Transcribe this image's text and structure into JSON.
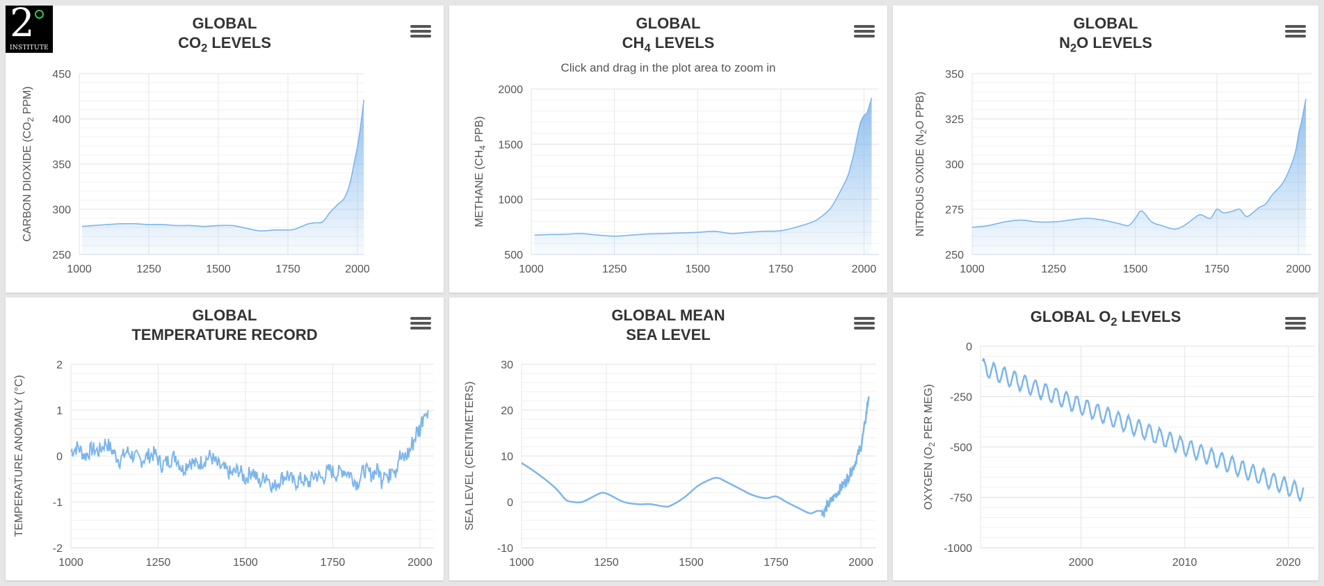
{
  "logo": {
    "text": "2",
    "caption": "INSTITUTE"
  },
  "menu_icon": "hamburger-menu-icon",
  "chart_data": [
    {
      "id": "co2",
      "type": "area",
      "title_line1": "GLOBAL",
      "title_line2": "CO",
      "title_sub": "2",
      "title_after": " LEVELS",
      "subtitle": "",
      "ylabel_pre": "CARBON DIOXIDE (CO",
      "ylabel_sub": "2",
      "ylabel_post": " PPM)",
      "xlim": [
        1000,
        2025
      ],
      "ylim": [
        250,
        450
      ],
      "xticks": [
        1000,
        1250,
        1500,
        1750,
        2000
      ],
      "yticks": [
        250,
        300,
        350,
        400,
        450
      ],
      "x": [
        1010,
        1050,
        1100,
        1150,
        1200,
        1250,
        1300,
        1350,
        1400,
        1450,
        1500,
        1550,
        1600,
        1650,
        1700,
        1750,
        1775,
        1800,
        1825,
        1850,
        1875,
        1900,
        1925,
        1950,
        1960,
        1970,
        1980,
        1990,
        2000,
        2010,
        2020,
        2023
      ],
      "y": [
        281,
        282,
        283,
        284,
        284,
        283,
        283,
        282,
        282,
        281,
        282,
        282,
        279,
        276,
        277,
        277,
        278,
        281,
        284,
        285,
        286,
        296,
        304,
        311,
        317,
        325,
        338,
        354,
        369,
        389,
        413,
        421
      ]
    },
    {
      "id": "ch4",
      "type": "area",
      "title_line1": "GLOBAL",
      "title_line2": "CH",
      "title_sub": "4",
      "title_after": " LEVELS",
      "subtitle": "Click and drag in the plot area to zoom in",
      "ylabel_pre": "METHANE (CH",
      "ylabel_sub": "4",
      "ylabel_post": " PPB)",
      "xlim": [
        1000,
        2045
      ],
      "ylim": [
        500,
        2000
      ],
      "xticks": [
        1000,
        1250,
        1500,
        1750,
        2000
      ],
      "yticks": [
        500,
        1000,
        1500,
        2000
      ],
      "x": [
        1010,
        1050,
        1100,
        1150,
        1200,
        1250,
        1300,
        1350,
        1400,
        1450,
        1500,
        1550,
        1600,
        1650,
        1700,
        1750,
        1800,
        1850,
        1875,
        1900,
        1925,
        1950,
        1960,
        1970,
        1980,
        1990,
        2000,
        2010,
        2023
      ],
      "y": [
        675,
        680,
        682,
        690,
        675,
        665,
        675,
        685,
        690,
        695,
        700,
        710,
        690,
        700,
        710,
        715,
        750,
        800,
        850,
        920,
        1050,
        1200,
        1300,
        1420,
        1570,
        1700,
        1760,
        1790,
        1920
      ]
    },
    {
      "id": "n2o",
      "type": "area",
      "title_line1": "GLOBAL",
      "title_line2": "N",
      "title_sub": "2",
      "title_after": "O LEVELS",
      "subtitle": "",
      "ylabel_pre": "NITROUS OXIDE (N",
      "ylabel_sub": "2",
      "ylabel_post": "O PPB)",
      "xlim": [
        1000,
        2040
      ],
      "ylim": [
        250,
        350
      ],
      "xticks": [
        1000,
        1250,
        1500,
        1750,
        2000
      ],
      "yticks": [
        250,
        275,
        300,
        325,
        350
      ],
      "x": [
        1000,
        1050,
        1100,
        1150,
        1200,
        1250,
        1300,
        1350,
        1400,
        1450,
        1480,
        1500,
        1520,
        1550,
        1580,
        1620,
        1650,
        1680,
        1700,
        1730,
        1750,
        1770,
        1800,
        1820,
        1840,
        1860,
        1880,
        1900,
        1920,
        1950,
        1970,
        1990,
        2000,
        2010,
        2023
      ],
      "y": [
        265,
        266,
        268,
        269,
        268,
        268,
        269,
        270,
        269,
        267,
        266,
        270,
        274,
        268,
        266,
        264,
        266,
        270,
        272,
        270,
        275,
        273,
        274,
        275,
        271,
        273,
        276,
        278,
        283,
        289,
        296,
        306,
        316,
        324,
        336
      ]
    },
    {
      "id": "temp",
      "type": "line",
      "title_line1": "GLOBAL",
      "title_line2": "TEMPERATURE RECORD",
      "title_sub": "",
      "title_after": "",
      "subtitle": "",
      "ylabel_pre": "TEMPERATURE ANOMALY (°C)",
      "ylabel_sub": "",
      "ylabel_post": "",
      "xlim": [
        1000,
        2040
      ],
      "ylim": [
        -2,
        2
      ],
      "xticks": [
        1000,
        1250,
        1500,
        1750,
        2000
      ],
      "yticks": [
        -2,
        -1,
        0,
        1,
        2
      ],
      "x": [
        1000,
        1020,
        1040,
        1060,
        1080,
        1100,
        1120,
        1140,
        1160,
        1180,
        1200,
        1220,
        1240,
        1260,
        1280,
        1300,
        1320,
        1340,
        1360,
        1380,
        1400,
        1420,
        1440,
        1460,
        1480,
        1500,
        1520,
        1540,
        1560,
        1580,
        1600,
        1620,
        1640,
        1660,
        1680,
        1700,
        1720,
        1740,
        1760,
        1780,
        1800,
        1820,
        1840,
        1860,
        1880,
        1890,
        1900,
        1910,
        1920,
        1930,
        1940,
        1950,
        1960,
        1970,
        1980,
        1990,
        2000,
        2010,
        2015,
        2020,
        2023
      ],
      "y": [
        0.1,
        0.2,
        0.0,
        0.15,
        0.1,
        0.3,
        0.1,
        -0.1,
        0.1,
        0.0,
        -0.1,
        0.0,
        0.05,
        -0.2,
        -0.1,
        0.0,
        -0.3,
        -0.1,
        -0.2,
        -0.1,
        0.0,
        -0.2,
        -0.3,
        -0.4,
        -0.3,
        -0.5,
        -0.3,
        -0.6,
        -0.4,
        -0.7,
        -0.5,
        -0.4,
        -0.6,
        -0.5,
        -0.6,
        -0.4,
        -0.5,
        -0.3,
        -0.4,
        -0.3,
        -0.4,
        -0.6,
        -0.3,
        -0.4,
        -0.3,
        -0.5,
        -0.2,
        -0.6,
        -0.1,
        -0.3,
        0.0,
        -0.1,
        0.0,
        0.1,
        0.3,
        0.5,
        0.6,
        0.9,
        1.1,
        0.8,
        1.0
      ]
    },
    {
      "id": "sea",
      "type": "line",
      "title_line1": "GLOBAL MEAN",
      "title_line2": "SEA LEVEL",
      "title_sub": "",
      "title_after": "",
      "subtitle": "",
      "ylabel_pre": "SEA LEVEL (CENTIMETERS)",
      "ylabel_sub": "",
      "ylabel_post": "",
      "xlim": [
        1000,
        2045
      ],
      "ylim": [
        -10,
        30
      ],
      "xticks": [
        1000,
        1250,
        1500,
        1750,
        2000
      ],
      "yticks": [
        -10,
        0,
        10,
        20,
        30
      ],
      "x": [
        1000,
        1050,
        1100,
        1130,
        1150,
        1180,
        1220,
        1240,
        1260,
        1300,
        1340,
        1380,
        1420,
        1440,
        1480,
        1520,
        1560,
        1580,
        1600,
        1640,
        1680,
        1720,
        1750,
        1780,
        1820,
        1850,
        1870,
        1885,
        1890,
        1900,
        1920,
        1940,
        1960,
        1980,
        2000,
        2010,
        2023
      ],
      "y": [
        8.5,
        6,
        3,
        0.5,
        0,
        0,
        1.5,
        2,
        1.5,
        0,
        -0.5,
        -0.5,
        -1,
        -0.8,
        1,
        3.5,
        5,
        5.2,
        4.5,
        3,
        1.5,
        0.8,
        1.2,
        0,
        -1.5,
        -2.5,
        -2,
        -2,
        -2.5,
        -1,
        1,
        3,
        5,
        8,
        12,
        16,
        23
      ]
    },
    {
      "id": "o2",
      "type": "line",
      "title_line1": "",
      "title_line2": "GLOBAL O",
      "title_sub": "2",
      "title_after": " LEVELS",
      "subtitle": "",
      "ylabel_pre": "OXYGEN (O",
      "ylabel_sub": "2",
      "ylabel_post": " PER MEG)",
      "xlim": [
        1990.3,
        2022.5
      ],
      "ylim": [
        -1000,
        0
      ],
      "xticks": [
        2000,
        2010,
        2020
      ],
      "yticks": [
        -1000,
        -750,
        -500,
        -250,
        0
      ],
      "seasonal_amplitude": 40,
      "trend_start": [
        1990.5,
        -105
      ],
      "trend_end": [
        2021.5,
        -730
      ]
    }
  ]
}
